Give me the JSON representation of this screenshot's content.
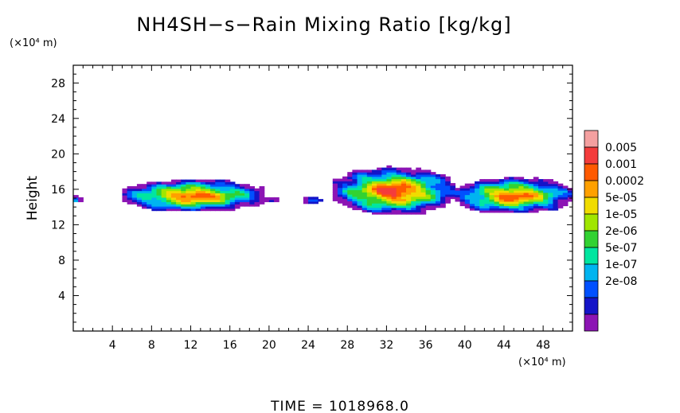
{
  "chart_data": {
    "type": "heatmap",
    "title": "NH4SH−s−Rain Mixing Ratio [kg/kg]",
    "ylabel": "Height",
    "xlabel": "",
    "x_unit": "(×10⁴ m)",
    "y_unit": "(×10⁴ m)",
    "xlim": [
      0,
      51
    ],
    "ylim": [
      0,
      30
    ],
    "x_ticks": [
      4,
      8,
      12,
      16,
      20,
      24,
      28,
      32,
      36,
      40,
      44,
      48
    ],
    "y_ticks": [
      4,
      8,
      12,
      16,
      20,
      24,
      28
    ],
    "x_tick_labels": [
      "4",
      "8",
      "12",
      "16",
      "20",
      "24",
      "28",
      "32",
      "36",
      "40",
      "44",
      "48"
    ],
    "y_tick_labels": [
      "4",
      "8",
      "12",
      "16",
      "20",
      "24",
      "28"
    ],
    "colorbar": {
      "labels": [
        "0.005",
        "0.001",
        "0.0002",
        "5e-05",
        "1e-05",
        "2e-06",
        "5e-07",
        "1e-07",
        "2e-08"
      ],
      "colors": [
        "#f4a0a0",
        "#f43c3c",
        "#ff5a00",
        "#ffa000",
        "#f0dc00",
        "#a0e600",
        "#32d232",
        "#00e6a0",
        "#00b4f0",
        "#0050ff",
        "#1414c8",
        "#8c14b4"
      ]
    },
    "regions": [
      {
        "name": "left-edge",
        "x_range": [
          0,
          0.8
        ],
        "y_range": [
          14.6,
          15.6
        ],
        "core_level": 3
      },
      {
        "name": "left-cloud",
        "x_range": [
          5,
          19.5
        ],
        "y_range": [
          13.6,
          17.4
        ],
        "core_level": 9
      },
      {
        "name": "small-blob-a",
        "x_range": [
          19.5,
          21
        ],
        "y_range": [
          14.6,
          15.4
        ],
        "core_level": 2
      },
      {
        "name": "small-blob-b",
        "x_range": [
          23.5,
          25.2
        ],
        "y_range": [
          14.4,
          15.4
        ],
        "core_level": 2
      },
      {
        "name": "central-cloud",
        "x_range": [
          26.5,
          39
        ],
        "y_range": [
          13.2,
          18.8
        ],
        "core_level": 10
      },
      {
        "name": "right-cloud",
        "x_range": [
          39,
          51
        ],
        "y_range": [
          13.4,
          17.6
        ],
        "core_level": 9
      }
    ],
    "grid": false,
    "legend": "right"
  },
  "time_label": "TIME = 1018968.0"
}
